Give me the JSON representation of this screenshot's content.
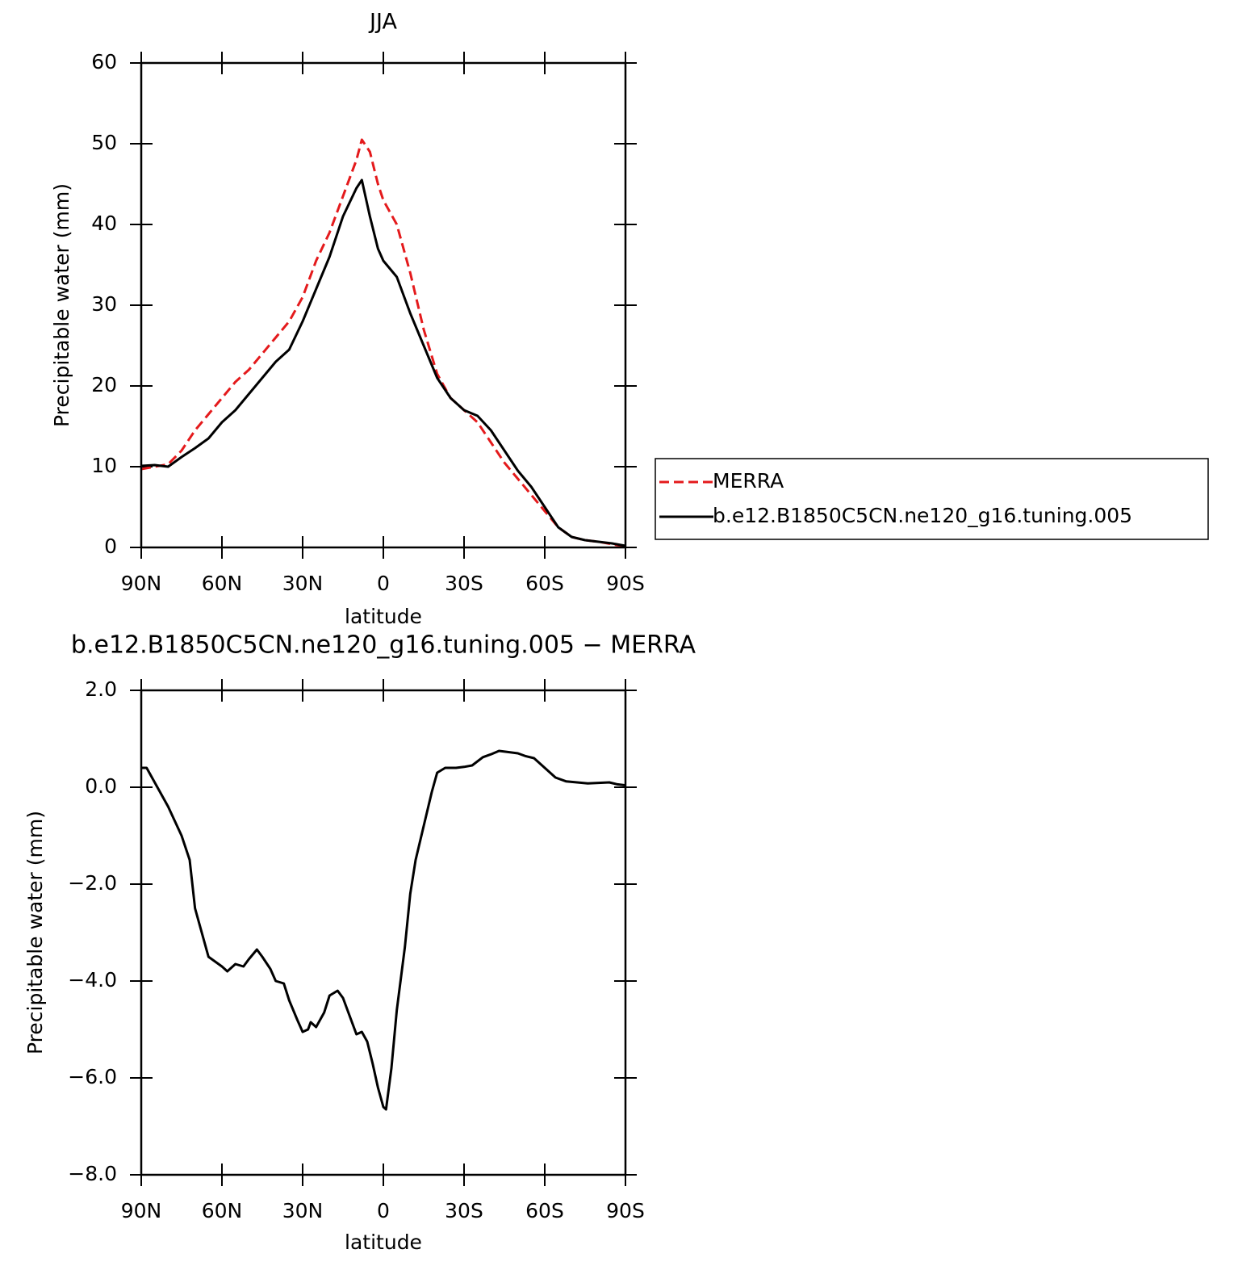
{
  "chart_data": [
    {
      "type": "line",
      "title": "JJA",
      "xlabel": "latitude",
      "ylabel": "Precipitable water (mm)",
      "xlim": [
        90,
        -90
      ],
      "ylim": [
        0,
        60
      ],
      "xticks": [
        {
          "value": 90,
          "label": "90N"
        },
        {
          "value": 60,
          "label": "60N"
        },
        {
          "value": 30,
          "label": "30N"
        },
        0,
        {
          "value": -30,
          "label": "30S"
        },
        {
          "value": -60,
          "label": "60S"
        },
        {
          "value": -90,
          "label": "90S"
        }
      ],
      "yticks": [
        0,
        10,
        20,
        30,
        40,
        50,
        60
      ],
      "legend": "outside-right",
      "x": [
        90,
        85,
        80,
        75,
        70,
        65,
        60,
        55,
        50,
        45,
        40,
        35,
        30,
        25,
        20,
        15,
        10,
        8,
        5,
        2,
        0,
        -5,
        -10,
        -15,
        -20,
        -25,
        -30,
        -35,
        -40,
        -45,
        -50,
        -55,
        -60,
        -65,
        -70,
        -75,
        -80,
        -85,
        -90
      ],
      "series": [
        {
          "name": "MERRA",
          "color": "#e41a1c",
          "style": "dashed",
          "values": [
            9.7,
            10,
            10.3,
            12,
            14.5,
            16.5,
            18.5,
            20.5,
            22,
            24,
            26,
            28,
            31,
            35.5,
            39,
            43.5,
            48,
            50.5,
            49,
            45,
            43,
            40,
            34,
            27,
            21.5,
            18.5,
            17,
            15.5,
            13,
            10.5,
            8.5,
            6.5,
            4.5,
            2.5,
            1.3,
            0.9,
            0.7,
            0.4,
            0.1
          ]
        },
        {
          "name": "b.e12.B1850C5CN.ne120_g16.tuning.005",
          "color": "#000000",
          "style": "solid",
          "values": [
            10.1,
            10.2,
            10,
            11.2,
            12.3,
            13.5,
            15.5,
            17,
            19,
            21,
            23,
            24.5,
            28,
            32,
            36,
            41,
            44.5,
            45.5,
            41,
            37,
            35.5,
            33.5,
            29,
            25,
            21,
            18.5,
            17,
            16.3,
            14.5,
            12,
            9.5,
            7.5,
            5,
            2.5,
            1.3,
            0.9,
            0.7,
            0.5,
            0.2
          ]
        }
      ]
    },
    {
      "type": "line",
      "title": "b.e12.B1850C5CN.ne120_g16.tuning.005 − MERRA",
      "xlabel": "latitude",
      "ylabel": "Precipitable water (mm)",
      "xlim": [
        90,
        -90
      ],
      "ylim": [
        -8,
        2
      ],
      "xticks": [
        {
          "value": 90,
          "label": "90N"
        },
        {
          "value": 60,
          "label": "60N"
        },
        {
          "value": 30,
          "label": "30N"
        },
        0,
        {
          "value": -30,
          "label": "30S"
        },
        {
          "value": -60,
          "label": "60S"
        },
        {
          "value": -90,
          "label": "90S"
        }
      ],
      "yticks": [
        {
          "value": -8,
          "label": "−8.0"
        },
        {
          "value": -6,
          "label": "−6.0"
        },
        {
          "value": -4,
          "label": "−4.0"
        },
        {
          "value": -2,
          "label": "−2.0"
        },
        {
          "value": 0,
          "label": "0.0"
        },
        {
          "value": 2,
          "label": "2.0"
        }
      ],
      "x": [
        90,
        88,
        85,
        80,
        75,
        72,
        70,
        65,
        60,
        58,
        55,
        52,
        50,
        47,
        45,
        42,
        40,
        37,
        35,
        32,
        30,
        28,
        27,
        25,
        22,
        20,
        17,
        15,
        12,
        10,
        8,
        6,
        4,
        2,
        0,
        -1,
        -3,
        -5,
        -8,
        -10,
        -12,
        -15,
        -18,
        -20,
        -23,
        -27,
        -30,
        -33,
        -37,
        -40,
        -43,
        -46,
        -50,
        -53,
        -56,
        -60,
        -64,
        -68,
        -72,
        -76,
        -80,
        -84,
        -87,
        -90
      ],
      "series": [
        {
          "name": "b.e12.B1850C5CN.ne120_g16.tuning.005 − MERRA",
          "color": "#000000",
          "style": "solid",
          "values": [
            0.4,
            0.4,
            0.1,
            -0.4,
            -1.0,
            -1.5,
            -2.5,
            -3.5,
            -3.7,
            -3.8,
            -3.65,
            -3.7,
            -3.55,
            -3.35,
            -3.5,
            -3.75,
            -4.0,
            -4.05,
            -4.4,
            -4.8,
            -5.05,
            -5.0,
            -4.85,
            -4.95,
            -4.65,
            -4.3,
            -4.2,
            -4.35,
            -4.8,
            -5.1,
            -5.05,
            -5.25,
            -5.7,
            -6.2,
            -6.6,
            -6.65,
            -5.8,
            -4.6,
            -3.3,
            -2.2,
            -1.5,
            -0.8,
            -0.1,
            0.3,
            0.4,
            0.4,
            0.42,
            0.45,
            0.62,
            0.68,
            0.75,
            0.73,
            0.7,
            0.64,
            0.6,
            0.4,
            0.2,
            0.12,
            0.1,
            0.08,
            0.09,
            0.1,
            0.06,
            0.04
          ]
        }
      ]
    }
  ]
}
